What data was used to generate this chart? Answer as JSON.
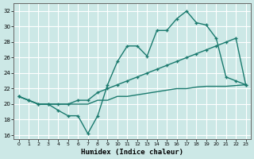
{
  "xlabel": "Humidex (Indice chaleur)",
  "background_color": "#cce8e6",
  "grid_color": "#ffffff",
  "line_color": "#1a7a6e",
  "xlim": [
    -0.5,
    23.5
  ],
  "ylim": [
    15.5,
    33
  ],
  "xticks": [
    0,
    1,
    2,
    3,
    4,
    5,
    6,
    7,
    8,
    9,
    10,
    11,
    12,
    13,
    14,
    15,
    16,
    17,
    18,
    19,
    20,
    21,
    22,
    23
  ],
  "yticks": [
    16,
    18,
    20,
    22,
    24,
    26,
    28,
    30,
    32
  ],
  "line1_x": [
    0,
    1,
    2,
    3,
    4,
    5,
    6,
    7,
    8,
    9,
    10,
    11,
    12,
    13,
    14,
    15,
    16,
    17,
    18,
    19,
    20,
    21,
    22,
    23
  ],
  "line1_y": [
    21.0,
    20.5,
    20.0,
    20.0,
    19.2,
    18.5,
    18.5,
    16.2,
    18.5,
    22.5,
    25.5,
    27.5,
    27.5,
    26.2,
    29.5,
    29.5,
    31.0,
    32.0,
    30.5,
    30.2,
    28.5,
    23.5,
    23.0,
    22.5
  ],
  "line2_x": [
    0,
    1,
    2,
    3,
    4,
    5,
    6,
    7,
    8,
    9,
    10,
    11,
    12,
    13,
    14,
    15,
    16,
    17,
    18,
    19,
    20,
    21,
    22,
    23
  ],
  "line2_y": [
    21.0,
    20.5,
    20.0,
    20.0,
    20.0,
    20.0,
    20.5,
    20.5,
    21.5,
    22.0,
    22.5,
    23.0,
    23.5,
    24.0,
    24.5,
    25.0,
    25.5,
    26.0,
    26.5,
    27.0,
    27.5,
    28.0,
    28.5,
    22.5
  ],
  "line3_x": [
    0,
    1,
    2,
    3,
    4,
    5,
    6,
    7,
    8,
    9,
    10,
    11,
    12,
    13,
    14,
    15,
    16,
    17,
    18,
    19,
    20,
    21,
    22,
    23
  ],
  "line3_y": [
    21.0,
    20.5,
    20.0,
    20.0,
    20.0,
    20.0,
    20.0,
    20.0,
    20.5,
    20.5,
    21.0,
    21.0,
    21.2,
    21.4,
    21.6,
    21.8,
    22.0,
    22.0,
    22.2,
    22.3,
    22.3,
    22.3,
    22.4,
    22.5
  ]
}
